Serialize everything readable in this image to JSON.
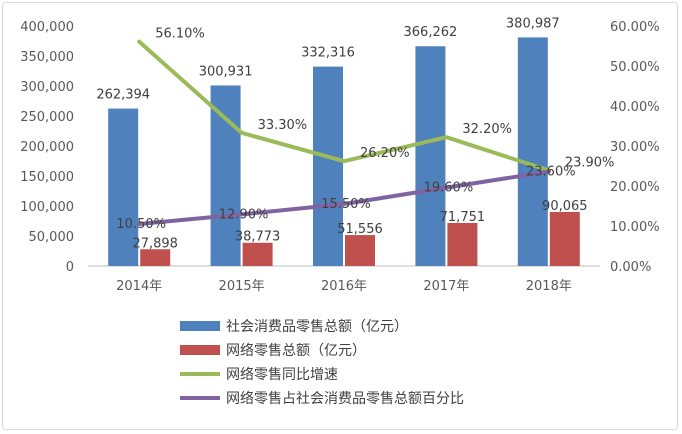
{
  "chart_data": {
    "type": "bar",
    "categories": [
      "2014年",
      "2015年",
      "2016年",
      "2017年",
      "2018年"
    ],
    "series": [
      {
        "name": "社会消费品零售总额（亿元）",
        "type": "bar",
        "axis": "left",
        "color": "#4f81bd",
        "values": [
          262394,
          300931,
          332316,
          366262,
          380987
        ],
        "labels": [
          "262,394",
          "300,931",
          "332,316",
          "366,262",
          "380,987"
        ]
      },
      {
        "name": "网络零售总额（亿元）",
        "type": "bar",
        "axis": "left",
        "color": "#c0504d",
        "values": [
          27898,
          38773,
          51556,
          71751,
          90065
        ],
        "labels": [
          "27,898",
          "38,773",
          "51,556",
          "71,751",
          "90,065"
        ]
      },
      {
        "name": "网络零售同比增速",
        "type": "line",
        "axis": "right",
        "color": "#9bbb59",
        "values": [
          56.1,
          33.3,
          26.2,
          32.2,
          23.9
        ],
        "labels": [
          "56.10%",
          "33.30%",
          "26.20%",
          "32.20%",
          "23.90%"
        ]
      },
      {
        "name": "网络零售占社会消费品零售总额百分比",
        "type": "line",
        "axis": "right",
        "color": "#8064a2",
        "values": [
          10.5,
          12.9,
          15.5,
          19.6,
          23.6
        ],
        "labels": [
          "10.50%",
          "12.90%",
          "15.50%",
          "19.60%",
          "23.60%"
        ]
      }
    ],
    "left_axis": {
      "ylim": [
        0,
        400000
      ],
      "ticks": [
        "0",
        "50,000",
        "100,000",
        "150,000",
        "200,000",
        "250,000",
        "300,000",
        "350,000",
        "400,000"
      ]
    },
    "right_axis": {
      "ylim": [
        0,
        60
      ],
      "ticks": [
        "0.00%",
        "10.00%",
        "20.00%",
        "30.00%",
        "40.00%",
        "50.00%",
        "60.00%"
      ]
    },
    "grid": false,
    "legend": "bottom"
  }
}
